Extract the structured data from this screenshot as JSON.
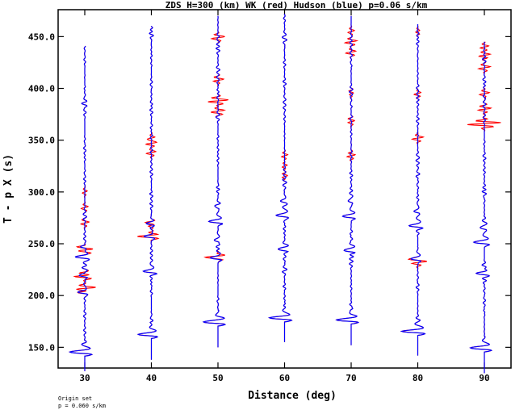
{
  "chart_data": {
    "type": "line",
    "title": "ZDS H=300 (km) WK (red) Hudson (blue) p=0.06 s/km",
    "xlabel": "Distance (deg)",
    "ylabel": "T - p X (s)",
    "xlim": [
      26,
      94
    ],
    "ylim": [
      130,
      476
    ],
    "x_ticks": [
      30,
      40,
      50,
      60,
      70,
      80,
      90
    ],
    "y_ticks": [
      150.0,
      200.0,
      250.0,
      300.0,
      350.0,
      400.0,
      450.0
    ],
    "grid": false,
    "series": [
      {
        "name": "WK",
        "color": "#ff0000"
      },
      {
        "name": "Hudson",
        "color": "#0000ff"
      }
    ],
    "traces": [
      {
        "distance": 30,
        "start": 127,
        "end": 441,
        "first_arrival": 144,
        "amplitude_deg": 3.5,
        "wavelets": [
          [
            144,
            3.5
          ],
          [
            202,
            1.6
          ],
          [
            218,
            1.4
          ],
          [
            236,
            1.8
          ],
          [
            246,
            1.0
          ]
        ],
        "red_extra": [
          [
            207,
            1.6
          ],
          [
            219,
            1.5
          ],
          [
            244,
            1.1
          ],
          [
            270,
            0.6
          ],
          [
            285,
            0.5
          ],
          [
            300,
            0.4
          ]
        ]
      },
      {
        "distance": 40,
        "start": 138,
        "end": 460,
        "first_arrival": 161,
        "amplitude_deg": 3.0,
        "wavelets": [
          [
            161,
            3.0
          ],
          [
            222,
            1.4
          ],
          [
            256,
            1.6
          ],
          [
            268,
            0.9
          ]
        ],
        "red_extra": [
          [
            258,
            1.1
          ],
          [
            268,
            0.9
          ],
          [
            338,
            0.8
          ],
          [
            347,
            0.9
          ],
          [
            352,
            0.7
          ]
        ]
      },
      {
        "distance": 50,
        "start": 150,
        "end": 470,
        "first_arrival": 173,
        "amplitude_deg": 3.5,
        "wavelets": [
          [
            173,
            3.5
          ],
          [
            235,
            1.8
          ],
          [
            252,
            1.0
          ],
          [
            270,
            2.0
          ],
          [
            284,
            0.9
          ]
        ],
        "red_extra": [
          [
            238,
            1.0
          ],
          [
            388,
            1.6
          ],
          [
            378,
            1.0
          ],
          [
            449,
            0.9
          ],
          [
            408,
            0.8
          ]
        ]
      },
      {
        "distance": 60,
        "start": 155,
        "end": 472,
        "first_arrival": 177,
        "amplitude_deg": 3.5,
        "wavelets": [
          [
            177,
            3.5
          ],
          [
            243,
            1.6
          ],
          [
            276,
            2.0
          ],
          [
            290,
            0.9
          ]
        ],
        "red_extra": [
          [
            315,
            0.6
          ],
          [
            325,
            0.5
          ],
          [
            335,
            0.5
          ]
        ]
      },
      {
        "distance": 70,
        "start": 152,
        "end": 470,
        "first_arrival": 175,
        "amplitude_deg": 3.5,
        "wavelets": [
          [
            175,
            3.5
          ],
          [
            242,
            1.7
          ],
          [
            275,
            2.0
          ],
          [
            290,
            0.8
          ]
        ],
        "red_extra": [
          [
            335,
            0.8
          ],
          [
            368,
            0.6
          ],
          [
            395,
            0.5
          ],
          [
            435,
            0.7
          ],
          [
            445,
            0.8
          ],
          [
            455,
            0.5
          ]
        ]
      },
      {
        "distance": 80,
        "start": 142,
        "end": 462,
        "first_arrival": 164,
        "amplitude_deg": 3.5,
        "wavelets": [
          [
            164,
            3.5
          ],
          [
            234,
            1.6
          ],
          [
            266,
            2.0
          ],
          [
            280,
            0.9
          ]
        ],
        "red_extra": [
          [
            232,
            1.0
          ],
          [
            352,
            0.9
          ],
          [
            395,
            0.5
          ],
          [
            455,
            0.4
          ]
        ]
      },
      {
        "distance": 90,
        "start": 125,
        "end": 445,
        "first_arrival": 148,
        "amplitude_deg": 3.5,
        "wavelets": [
          [
            148,
            3.5
          ],
          [
            220,
            1.6
          ],
          [
            250,
            2.5
          ],
          [
            264,
            1.0
          ]
        ],
        "red_extra": [
          [
            366,
            2.8
          ],
          [
            380,
            1.0
          ],
          [
            395,
            0.8
          ],
          [
            420,
            0.9
          ],
          [
            432,
            1.0
          ],
          [
            440,
            0.7
          ]
        ]
      }
    ]
  },
  "footer": {
    "line1": "Origin set",
    "line2": "p = 0.060 s/km"
  }
}
